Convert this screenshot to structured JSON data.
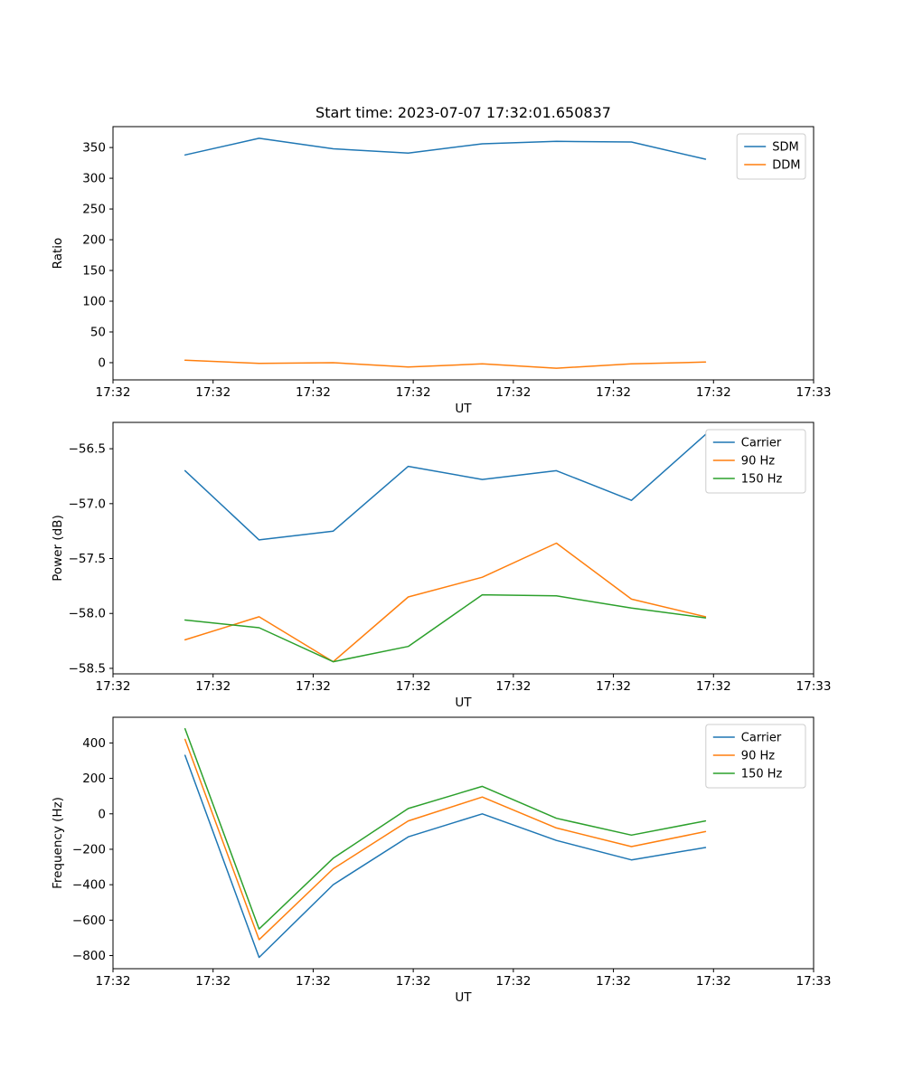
{
  "figure": {
    "background": "#ffffff"
  },
  "colors": {
    "C0": "#1f77b4",
    "C1": "#ff7f0e",
    "C2": "#2ca02c"
  },
  "chart_data": [
    {
      "type": "line",
      "title": "Start time: 2023-07-07 17:32:01.650837",
      "xlabel": "UT",
      "ylabel": "Ratio",
      "xlim": [
        0,
        7
      ],
      "ylim": [
        -28,
        384
      ],
      "x": [
        0.72,
        1.46,
        2.2,
        2.95,
        3.69,
        4.43,
        5.18,
        5.92
      ],
      "xtick_values": [
        0,
        1,
        2,
        3,
        4,
        5,
        6,
        7
      ],
      "xtick_labels": [
        "17:32",
        "17:32",
        "17:32",
        "17:32",
        "17:32",
        "17:32",
        "17:32",
        "17:33"
      ],
      "ytick_values": [
        0,
        50,
        100,
        150,
        200,
        250,
        300,
        350
      ],
      "ytick_labels": [
        "0",
        "50",
        "100",
        "150",
        "200",
        "250",
        "300",
        "350"
      ],
      "grid": false,
      "legend_position": "upper right",
      "series": [
        {
          "name": "SDM",
          "color": "#1f77b4",
          "values": [
            338,
            365,
            348,
            341,
            356,
            360,
            359,
            331
          ]
        },
        {
          "name": "DDM",
          "color": "#ff7f0e",
          "values": [
            4,
            -1,
            0,
            -7,
            -2,
            -9,
            -2,
            1
          ]
        }
      ]
    },
    {
      "type": "line",
      "title": "",
      "xlabel": "UT",
      "ylabel": "Power (dB)",
      "xlim": [
        0,
        7
      ],
      "ylim": [
        -58.55,
        -56.26
      ],
      "x": [
        0.72,
        1.46,
        2.2,
        2.95,
        3.69,
        4.43,
        5.18,
        5.92
      ],
      "xtick_values": [
        0,
        1,
        2,
        3,
        4,
        5,
        6,
        7
      ],
      "xtick_labels": [
        "17:32",
        "17:32",
        "17:32",
        "17:32",
        "17:32",
        "17:32",
        "17:32",
        "17:33"
      ],
      "ytick_values": [
        -58.5,
        -58.0,
        -57.5,
        -57.0,
        -56.5
      ],
      "ytick_labels": [
        "−58.5",
        "−58.0",
        "−57.5",
        "−57.0",
        "−56.5"
      ],
      "grid": false,
      "legend_position": "upper right",
      "series": [
        {
          "name": "Carrier",
          "color": "#1f77b4",
          "values": [
            -56.7,
            -57.33,
            -57.25,
            -56.66,
            -56.78,
            -56.7,
            -56.97,
            -56.37
          ]
        },
        {
          "name": "90 Hz",
          "color": "#ff7f0e",
          "values": [
            -58.24,
            -58.03,
            -58.44,
            -57.85,
            -57.67,
            -57.36,
            -57.87,
            -58.03
          ]
        },
        {
          "name": "150 Hz",
          "color": "#2ca02c",
          "values": [
            -58.06,
            -58.13,
            -58.44,
            -58.3,
            -57.83,
            -57.84,
            -57.95,
            -58.04
          ]
        }
      ]
    },
    {
      "type": "line",
      "title": "",
      "xlabel": "UT",
      "ylabel": "Frequency (Hz)",
      "xlim": [
        0,
        7
      ],
      "ylim": [
        -874,
        545
      ],
      "x": [
        0.72,
        1.46,
        2.2,
        2.95,
        3.69,
        4.43,
        5.18,
        5.92
      ],
      "xtick_values": [
        0,
        1,
        2,
        3,
        4,
        5,
        6,
        7
      ],
      "xtick_labels": [
        "17:32",
        "17:32",
        "17:32",
        "17:32",
        "17:32",
        "17:32",
        "17:32",
        "17:33"
      ],
      "ytick_values": [
        -800,
        -600,
        -400,
        -200,
        0,
        200,
        400
      ],
      "ytick_labels": [
        "−800",
        "−600",
        "−400",
        "−200",
        "0",
        "200",
        "400"
      ],
      "grid": false,
      "legend_position": "upper right",
      "series": [
        {
          "name": "Carrier",
          "color": "#1f77b4",
          "values": [
            330,
            -810,
            -400,
            -130,
            0,
            -150,
            -260,
            -190
          ]
        },
        {
          "name": "90 Hz",
          "color": "#ff7f0e",
          "values": [
            420,
            -710,
            -310,
            -40,
            95,
            -80,
            -185,
            -100
          ]
        },
        {
          "name": "150 Hz",
          "color": "#2ca02c",
          "values": [
            480,
            -650,
            -250,
            30,
            155,
            -25,
            -120,
            -40
          ]
        }
      ]
    }
  ]
}
